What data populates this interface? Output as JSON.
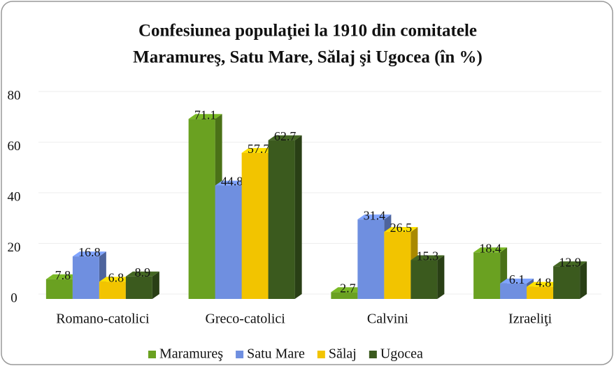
{
  "chart_data": {
    "type": "bar3d",
    "title": [
      "Confesiunea populaţiei la 1910 din comitatele",
      "Maramureş, Satu Mare, Sălaj şi Ugocea (în %)"
    ],
    "categories": [
      "Romano-catolici",
      "Greco-catolici",
      "Calvini",
      "Izraeliţi"
    ],
    "series": [
      {
        "name": "Maramureş",
        "color": "#6aa121",
        "values": [
          7.8,
          71.1,
          2.7,
          18.4
        ]
      },
      {
        "name": "Satu Mare",
        "color": "#6f8fe0",
        "values": [
          16.8,
          44.8,
          31.4,
          6.1
        ]
      },
      {
        "name": "Sălaj",
        "color": "#f2c400",
        "values": [
          6.8,
          57.7,
          26.5,
          4.8
        ]
      },
      {
        "name": "Ugocea",
        "color": "#3b5a1e",
        "values": [
          8.9,
          62.7,
          15.3,
          12.9
        ]
      }
    ],
    "ylim": [
      0,
      80
    ],
    "yticks": [
      0,
      20,
      40,
      60,
      80
    ],
    "grid": true,
    "legend": "bottom"
  }
}
